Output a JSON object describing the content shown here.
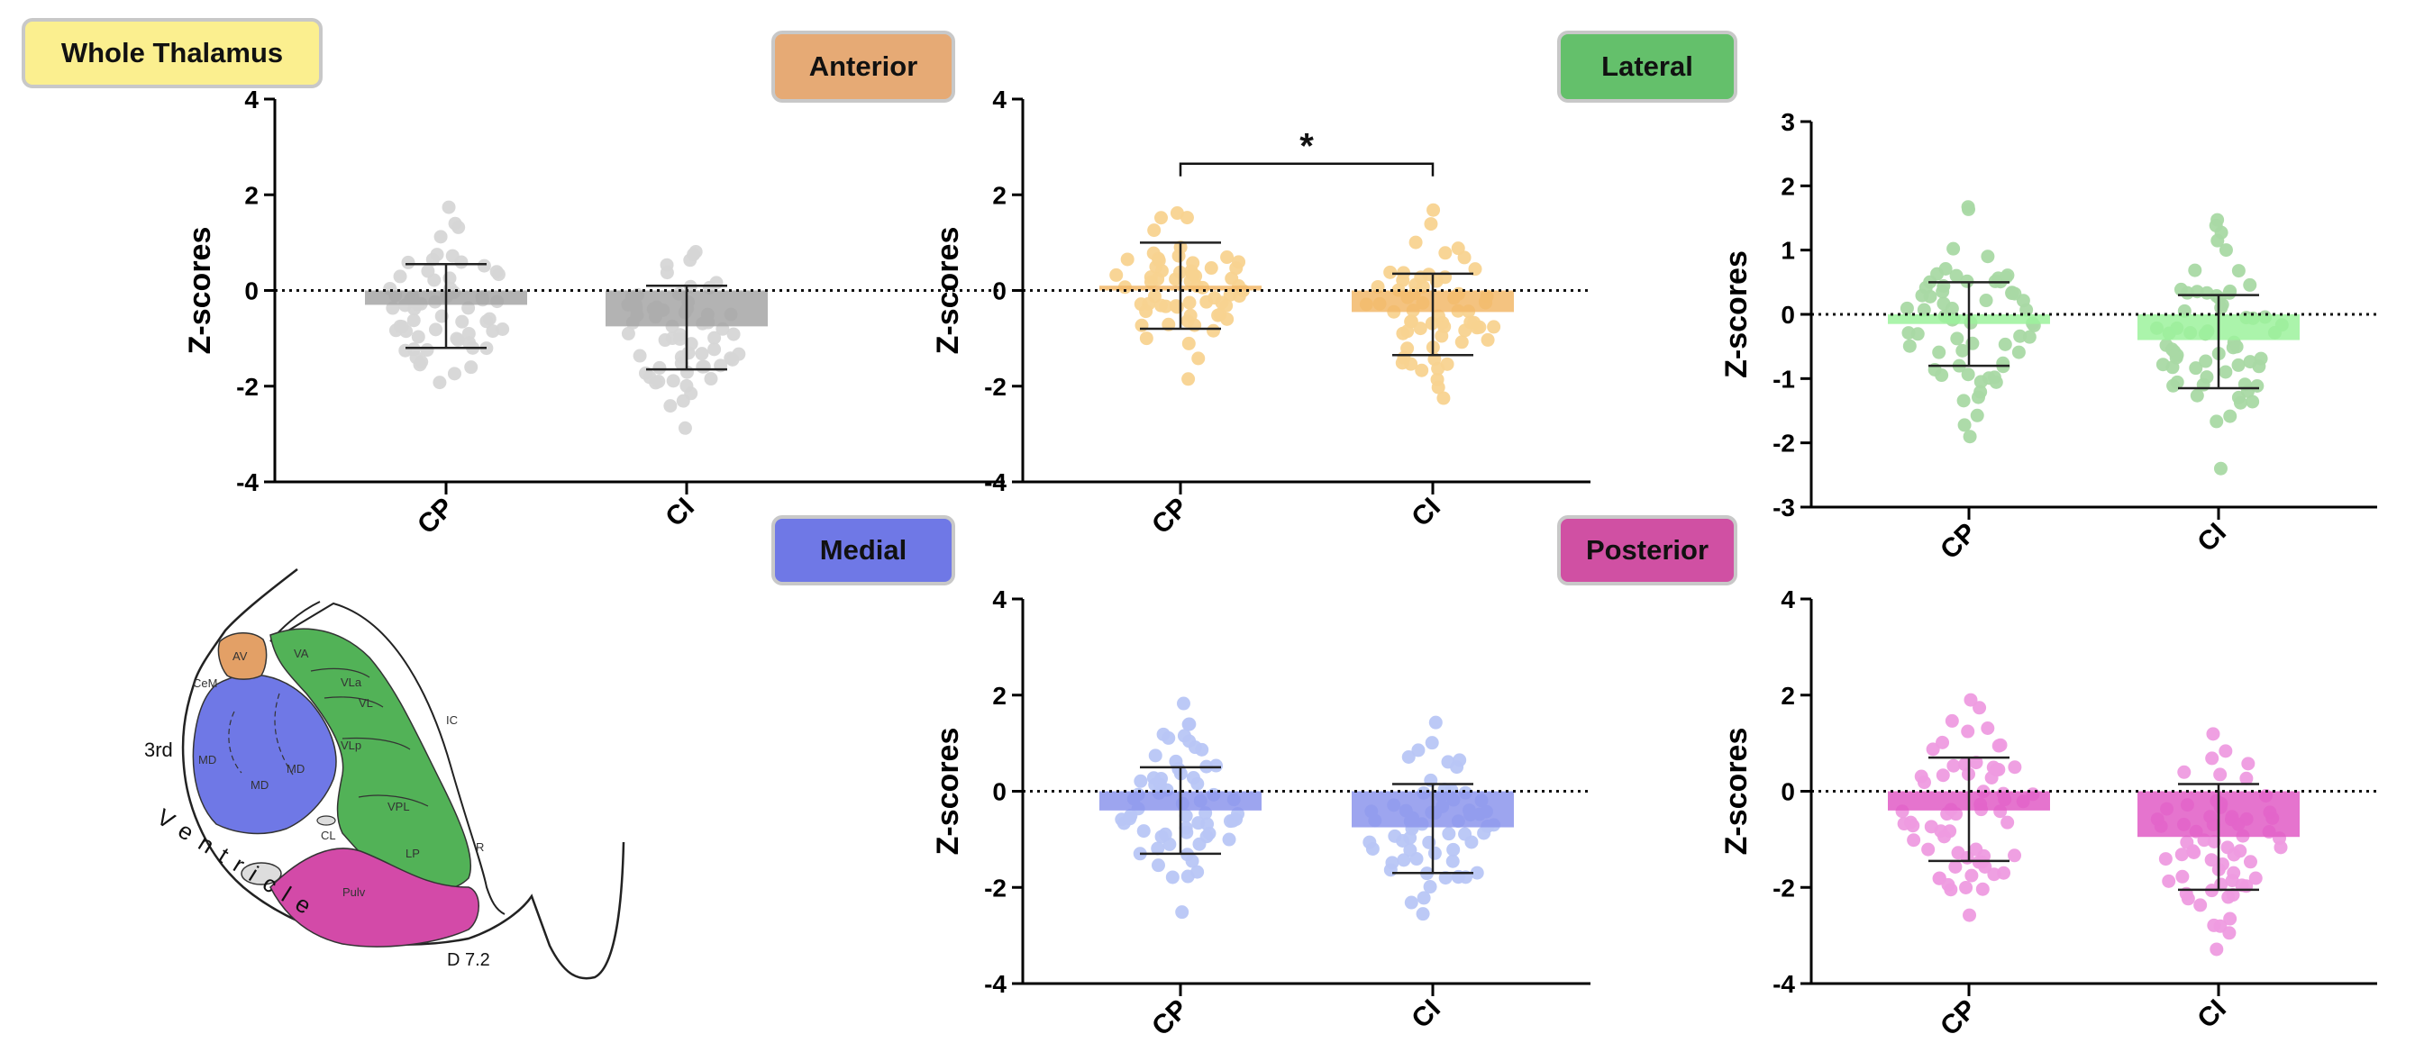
{
  "badges": {
    "whole": "Whole Thalamus",
    "anterior": "Anterior",
    "lateral": "Lateral",
    "medial": "Medial",
    "posterior": "Posterior"
  },
  "colors": {
    "whole_bar": "#a6a6a6",
    "whole_dot": "#d6d6d6",
    "whole_badge": "#fbef8f",
    "anterior_bar": "#f2b86a",
    "anterior_dot": "#f8d390",
    "anterior_badge": "#e6aa75",
    "lateral_bar": "#9cf29c",
    "lateral_dot": "#a9d9a4",
    "lateral_badge": "#64c06b",
    "medial_bar": "#8c95ec",
    "medial_dot": "#b8c6f5",
    "medial_badge": "#6f78e6",
    "posterior_bar": "#e05cc6",
    "posterior_dot": "#ee9be0",
    "posterior_badge": "#d050a3"
  },
  "chart_data": [
    {
      "id": "whole",
      "type": "bar",
      "title": "Whole Thalamus",
      "ylabel": "Z-scores",
      "ylim": [
        -4,
        4
      ],
      "yticks": [
        "4",
        "2",
        "0",
        "-2",
        "-4"
      ],
      "categories": [
        "CP",
        "CI"
      ],
      "means": [
        -0.3,
        -0.75
      ],
      "err_lower": [
        -1.2,
        -1.65
      ],
      "err_upper": [
        0.55,
        0.1
      ],
      "baseline": 0
    },
    {
      "id": "anterior",
      "type": "bar",
      "title": "Anterior",
      "ylabel": "Z-scores",
      "ylim": [
        -4,
        4
      ],
      "yticks": [
        "4",
        "2",
        "0",
        "-2",
        "-4"
      ],
      "categories": [
        "CP",
        "CI"
      ],
      "means": [
        0.1,
        -0.45
      ],
      "err_lower": [
        -0.8,
        -1.35
      ],
      "err_upper": [
        1.0,
        0.35
      ],
      "baseline": 0,
      "significance": "*"
    },
    {
      "id": "lateral",
      "type": "bar",
      "title": "Lateral",
      "ylabel": "Z-scores",
      "ylim": [
        -3,
        3
      ],
      "yticks": [
        "3",
        "2",
        "1",
        "0",
        "-1",
        "-2",
        "-3"
      ],
      "categories": [
        "CP",
        "CI"
      ],
      "means": [
        -0.15,
        -0.4
      ],
      "err_lower": [
        -0.8,
        -1.15
      ],
      "err_upper": [
        0.5,
        0.3
      ],
      "baseline": 0
    },
    {
      "id": "medial",
      "type": "bar",
      "title": "Medial",
      "ylabel": "Z-scores",
      "ylim": [
        -4,
        4
      ],
      "yticks": [
        "4",
        "2",
        "0",
        "-2",
        "-4"
      ],
      "categories": [
        "CP",
        "CI"
      ],
      "means": [
        -0.4,
        -0.75
      ],
      "err_lower": [
        -1.3,
        -1.7
      ],
      "err_upper": [
        0.5,
        0.15
      ],
      "baseline": 0
    },
    {
      "id": "posterior",
      "type": "bar",
      "title": "Posterior",
      "ylabel": "Z-scores",
      "ylim": [
        -4,
        4
      ],
      "yticks": [
        "4",
        "2",
        "0",
        "-2",
        "-4"
      ],
      "categories": [
        "CP",
        "CI"
      ],
      "means": [
        -0.4,
        -0.95
      ],
      "err_lower": [
        -1.45,
        -2.05
      ],
      "err_upper": [
        0.7,
        0.15
      ],
      "baseline": 0
    }
  ],
  "atlas": {
    "labels": [
      "3rd",
      "Ventricle",
      "D 7.2",
      "AV",
      "VA",
      "VLa",
      "VLp",
      "VPL",
      "LP",
      "MD",
      "CL",
      "Pulv",
      "IC",
      "R",
      "CeM",
      "VL"
    ]
  }
}
